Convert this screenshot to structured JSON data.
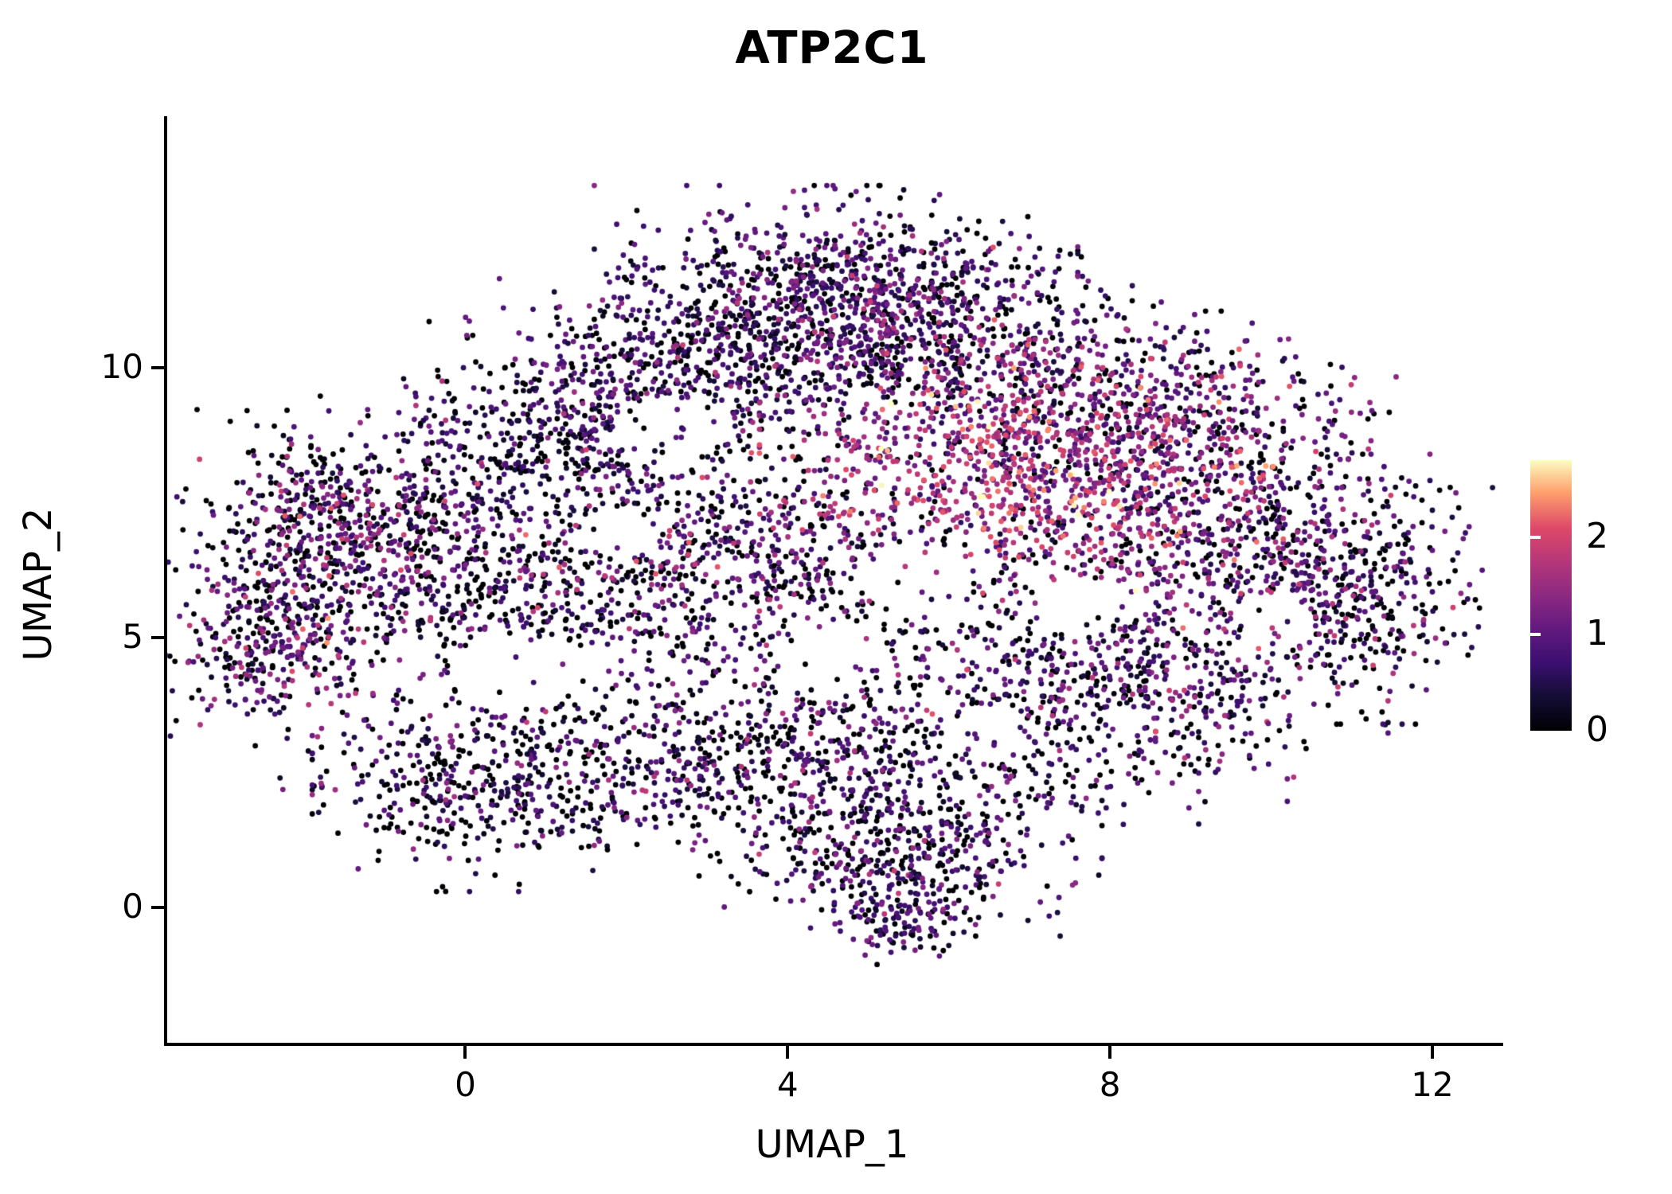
{
  "title": "ATP2C1",
  "colors": {
    "background": "#ffffff",
    "axis": "#000000",
    "text": "#000000"
  },
  "chart_data": {
    "type": "scatter",
    "title": "ATP2C1",
    "xlabel": "UMAP_1",
    "ylabel": "UMAP_2",
    "x_ticks": [
      0,
      4,
      8,
      12
    ],
    "x_tick_labels": [
      "0",
      "4",
      "8",
      "12"
    ],
    "y_ticks": [
      0,
      5,
      10
    ],
    "y_tick_labels": [
      "0",
      "5",
      "10"
    ],
    "x_domain": [
      -3.7,
      12.8
    ],
    "y_domain": [
      -2.5,
      14.6
    ],
    "grid": false,
    "legend_position": "right",
    "point_radius": 3.4,
    "colorbar": {
      "ticks": [
        0,
        1,
        2
      ],
      "tick_labels": [
        "0",
        "1",
        "2"
      ],
      "domain": [
        0,
        2.8
      ],
      "colormap": "magma",
      "stops": [
        {
          "t": 0.0,
          "c": "#000004"
        },
        {
          "t": 0.13,
          "c": "#140e36"
        },
        {
          "t": 0.25,
          "c": "#3b0f70"
        },
        {
          "t": 0.38,
          "c": "#641a80"
        },
        {
          "t": 0.5,
          "c": "#8c2981"
        },
        {
          "t": 0.63,
          "c": "#b73779"
        },
        {
          "t": 0.75,
          "c": "#de4968"
        },
        {
          "t": 0.88,
          "c": "#fe9f6d"
        },
        {
          "t": 1.0,
          "c": "#fcfdbf"
        }
      ]
    },
    "generator": {
      "seed": 42,
      "expr_clip": [
        0,
        2.8
      ],
      "void_reject_prob": 0.85,
      "cluster_fields": [
        "cx",
        "cy",
        "sx",
        "sy",
        "n",
        "expr_mean",
        "expr_sd",
        "zero_p"
      ],
      "clusters": [
        [
          4.6,
          11.5,
          1.2,
          0.75,
          800,
          0.75,
          0.45,
          0.18
        ],
        [
          2.8,
          10.1,
          1.3,
          0.7,
          550,
          0.65,
          0.45,
          0.22
        ],
        [
          1.2,
          8.6,
          1.2,
          0.8,
          500,
          0.6,
          0.45,
          0.25
        ],
        [
          6.3,
          10.3,
          1.1,
          0.8,
          500,
          0.8,
          0.55,
          0.2
        ],
        [
          8.8,
          9.3,
          1.1,
          0.7,
          350,
          0.9,
          0.6,
          0.22
        ],
        [
          -1.5,
          7.1,
          0.9,
          0.85,
          600,
          0.75,
          0.6,
          0.22
        ],
        [
          -2.4,
          5.0,
          0.65,
          0.8,
          380,
          0.8,
          0.65,
          0.2
        ],
        [
          0.2,
          5.7,
          1.1,
          0.9,
          400,
          0.55,
          0.5,
          0.3
        ],
        [
          3.2,
          6.4,
          1.5,
          1.1,
          650,
          0.8,
          0.55,
          0.22
        ],
        [
          5.2,
          5.2,
          2.0,
          1.3,
          320,
          0.7,
          0.6,
          0.3
        ],
        [
          9.0,
          7.2,
          1.2,
          1.1,
          600,
          1.0,
          0.6,
          0.18
        ],
        [
          10.9,
          5.9,
          0.85,
          1.0,
          480,
          0.7,
          0.5,
          0.25
        ],
        [
          8.2,
          4.1,
          1.3,
          0.9,
          550,
          0.75,
          0.55,
          0.22
        ],
        [
          3.6,
          2.7,
          2.2,
          0.75,
          800,
          0.6,
          0.5,
          0.27
        ],
        [
          0.2,
          2.3,
          1.0,
          0.8,
          330,
          0.6,
          0.5,
          0.27
        ],
        [
          5.4,
          1.1,
          1.0,
          0.65,
          430,
          0.65,
          0.5,
          0.25
        ],
        [
          5.4,
          -0.2,
          0.5,
          0.35,
          130,
          0.7,
          0.55,
          0.22
        ],
        [
          6.9,
          8.2,
          1.3,
          0.95,
          850,
          1.55,
          0.55,
          0.05
        ]
      ],
      "void_fields": [
        "vx",
        "vy",
        "r"
      ],
      "voids": [
        [
          2.45,
          8.8,
          0.65
        ],
        [
          0.6,
          4.4,
          0.8
        ],
        [
          5.6,
          6.1,
          0.7
        ],
        [
          4.4,
          4.8,
          0.55
        ],
        [
          1.9,
          6.9,
          0.45
        ],
        [
          10.0,
          5.3,
          0.5
        ],
        [
          6.4,
          3.2,
          0.5
        ],
        [
          7.6,
          5.6,
          0.55
        ]
      ]
    }
  }
}
